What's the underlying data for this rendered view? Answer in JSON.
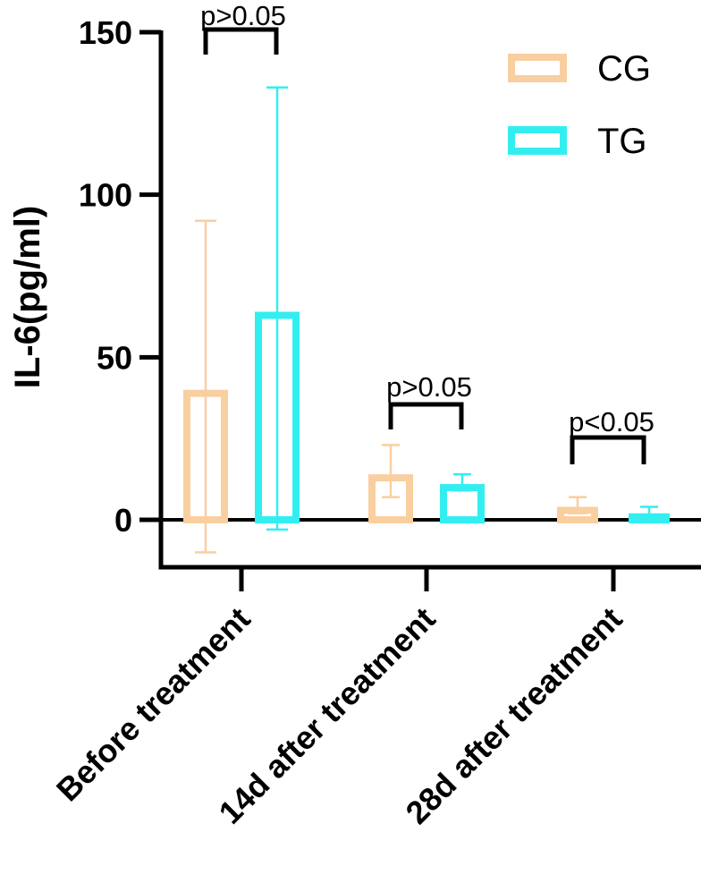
{
  "chart_data": {
    "type": "bar",
    "ylabel": "IL-6(pg/ml)",
    "xlabel": "",
    "ylim": [
      -15,
      150
    ],
    "yticks": [
      0,
      50,
      100,
      150
    ],
    "categories": [
      "Before treatment",
      "14d after treatment",
      "28d after treatment"
    ],
    "series": [
      {
        "name": "CG",
        "color": "#F9CFA0",
        "values": [
          40,
          14,
          4
        ],
        "error_low": [
          -10,
          7,
          2
        ],
        "error_high": [
          92,
          23,
          7
        ]
      },
      {
        "name": "TG",
        "color": "#33EEF0",
        "values": [
          64,
          11,
          2
        ],
        "error_low": [
          -3,
          9,
          0
        ],
        "error_high": [
          133,
          14,
          4
        ]
      }
    ],
    "significance": [
      {
        "category": 0,
        "label": "p>0.05"
      },
      {
        "category": 1,
        "label": "p>0.05"
      },
      {
        "category": 2,
        "label": "p<0.05"
      }
    ],
    "legend_position": "top-right"
  }
}
